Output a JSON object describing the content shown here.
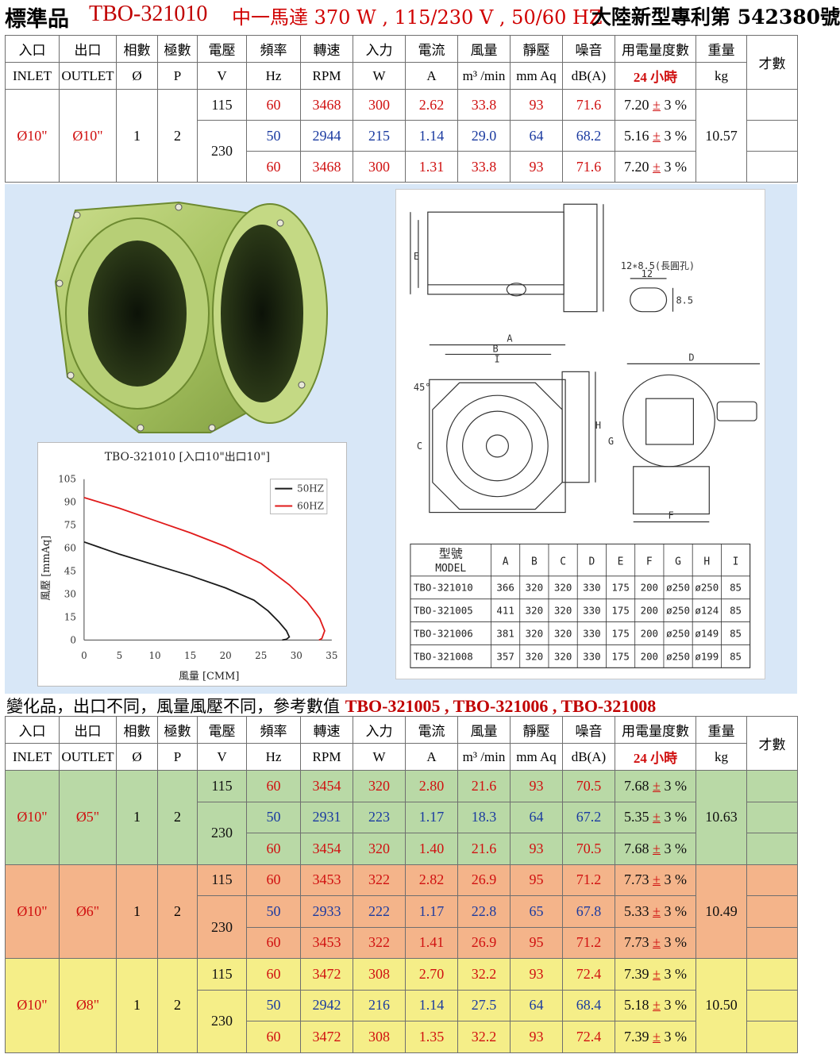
{
  "header": {
    "standard": "標準品",
    "model": "TBO-321010",
    "motor": "中一馬達 370 W , 115/230 V , 50/60 HZ",
    "patent": "大陸新型專利第 542380號"
  },
  "columns": [
    {
      "zh": "入口",
      "en": "INLET"
    },
    {
      "zh": "出口",
      "en": "OUTLET"
    },
    {
      "zh": "相數",
      "en": "Ø"
    },
    {
      "zh": "極數",
      "en": "P"
    },
    {
      "zh": "電壓",
      "en": "V"
    },
    {
      "zh": "頻率",
      "en": "Hz"
    },
    {
      "zh": "轉速",
      "en": "RPM"
    },
    {
      "zh": "入力",
      "en": "W"
    },
    {
      "zh": "電流",
      "en": "A"
    },
    {
      "zh": "風量",
      "en": "m³ /min"
    },
    {
      "zh": "靜壓",
      "en": "mm Aq"
    },
    {
      "zh": "噪音",
      "en": "dB(A)"
    },
    {
      "zh": "用電量度數",
      "en": "24 小時"
    },
    {
      "zh": "重量",
      "en": "kg"
    },
    {
      "zh": "才數",
      "en": ""
    }
  ],
  "standard_table": {
    "inlet": "Ø10\"",
    "outlet": "Ø10\"",
    "phase": "1",
    "poles": "2",
    "weight": "10.57",
    "rows": [
      {
        "v": "115",
        "hz": "60",
        "rpm": "3468",
        "w": "300",
        "a": "2.62",
        "flow": "33.8",
        "sp": "93",
        "db": "71.6",
        "kwh": "7.20",
        "tol": "±",
        "pct": "3 %"
      },
      {
        "v": "230",
        "hz": "50",
        "rpm": "2944",
        "w": "215",
        "a": "1.14",
        "flow": "29.0",
        "sp": "64",
        "db": "68.2",
        "kwh": "5.16",
        "tol": "±",
        "pct": "3 %"
      },
      {
        "v": "",
        "hz": "60",
        "rpm": "3468",
        "w": "300",
        "a": "1.31",
        "flow": "33.8",
        "sp": "93",
        "db": "71.6",
        "kwh": "7.20",
        "tol": "±",
        "pct": "3 %"
      }
    ]
  },
  "chart_data": {
    "type": "line",
    "title": "TBO-321010 [入口10\"出口10\"]",
    "xlabel": "風量 [CMM]",
    "ylabel": "風壓 [mmAq]",
    "xlim": [
      0,
      35
    ],
    "ylim": [
      0,
      105
    ],
    "xticks": [
      "0",
      "5",
      "10",
      "15",
      "20",
      "25",
      "30",
      "35"
    ],
    "yticks": [
      "0",
      "15",
      "30",
      "45",
      "60",
      "75",
      "90",
      "105"
    ],
    "legend_position": "top-right",
    "series": [
      {
        "name": "50HZ",
        "color": "#1a1a1a",
        "x": [
          0,
          5,
          10,
          15,
          20,
          24,
          26,
          27.5,
          28.6,
          29,
          28.6,
          28
        ],
        "y": [
          64,
          56,
          49,
          42,
          34,
          26,
          19,
          12,
          6,
          2,
          0.5,
          0
        ]
      },
      {
        "name": "60HZ",
        "color": "#e01a1a",
        "x": [
          0,
          5,
          10,
          15,
          20,
          25,
          29,
          31.5,
          33.3,
          34,
          33.6,
          33.2
        ],
        "y": [
          93,
          86,
          78,
          70,
          61,
          50,
          36,
          25,
          14,
          6,
          1,
          0
        ]
      }
    ]
  },
  "drawing": {
    "hole_label": "12∗8.5(長圓孔)",
    "hole_w": "12",
    "hole_h": "8.5",
    "angle": "45°",
    "dims": [
      "A",
      "B",
      "C",
      "D",
      "E",
      "F",
      "G",
      "H",
      "I"
    ],
    "model_header_zh": "型號",
    "model_header_en": "MODEL",
    "rows": [
      {
        "model": "TBO-321010",
        "vals": [
          "366",
          "320",
          "320",
          "330",
          "175",
          "200",
          "ø250",
          "ø250",
          "85"
        ]
      },
      {
        "model": "TBO-321005",
        "vals": [
          "411",
          "320",
          "320",
          "330",
          "175",
          "200",
          "ø250",
          "ø124",
          "85"
        ]
      },
      {
        "model": "TBO-321006",
        "vals": [
          "381",
          "320",
          "320",
          "330",
          "175",
          "200",
          "ø250",
          "ø149",
          "85"
        ]
      },
      {
        "model": "TBO-321008",
        "vals": [
          "357",
          "320",
          "320",
          "330",
          "175",
          "200",
          "ø250",
          "ø199",
          "85"
        ]
      }
    ]
  },
  "variant_title": {
    "text": "變化品，出口不同，風量風壓不同，參考數值",
    "models": "TBO-321005 , TBO-321006 , TBO-321008"
  },
  "variants": [
    {
      "inlet": "Ø10\"",
      "outlet": "Ø5\"",
      "phase": "1",
      "poles": "2",
      "weight": "10.63",
      "rows": [
        {
          "v": "115",
          "hz": "60",
          "rpm": "3454",
          "w": "320",
          "a": "2.80",
          "flow": "21.6",
          "sp": "93",
          "db": "70.5",
          "kwh": "7.68",
          "tol": "±",
          "pct": "3 %"
        },
        {
          "v": "230",
          "hz": "50",
          "rpm": "2931",
          "w": "223",
          "a": "1.17",
          "flow": "18.3",
          "sp": "64",
          "db": "67.2",
          "kwh": "5.35",
          "tol": "±",
          "pct": "3 %"
        },
        {
          "v": "",
          "hz": "60",
          "rpm": "3454",
          "w": "320",
          "a": "1.40",
          "flow": "21.6",
          "sp": "93",
          "db": "70.5",
          "kwh": "7.68",
          "tol": "±",
          "pct": "3 %"
        }
      ]
    },
    {
      "inlet": "Ø10\"",
      "outlet": "Ø6\"",
      "phase": "1",
      "poles": "2",
      "weight": "10.49",
      "rows": [
        {
          "v": "115",
          "hz": "60",
          "rpm": "3453",
          "w": "322",
          "a": "2.82",
          "flow": "26.9",
          "sp": "95",
          "db": "71.2",
          "kwh": "7.73",
          "tol": "±",
          "pct": "3 %"
        },
        {
          "v": "230",
          "hz": "50",
          "rpm": "2933",
          "w": "222",
          "a": "1.17",
          "flow": "22.8",
          "sp": "65",
          "db": "67.8",
          "kwh": "5.33",
          "tol": "±",
          "pct": "3 %"
        },
        {
          "v": "",
          "hz": "60",
          "rpm": "3453",
          "w": "322",
          "a": "1.41",
          "flow": "26.9",
          "sp": "95",
          "db": "71.2",
          "kwh": "7.73",
          "tol": "±",
          "pct": "3 %"
        }
      ]
    },
    {
      "inlet": "Ø10\"",
      "outlet": "Ø8\"",
      "phase": "1",
      "poles": "2",
      "weight": "10.50",
      "rows": [
        {
          "v": "115",
          "hz": "60",
          "rpm": "3472",
          "w": "308",
          "a": "2.70",
          "flow": "32.2",
          "sp": "93",
          "db": "72.4",
          "kwh": "7.39",
          "tol": "±",
          "pct": "3 %"
        },
        {
          "v": "230",
          "hz": "50",
          "rpm": "2942",
          "w": "216",
          "a": "1.14",
          "flow": "27.5",
          "sp": "64",
          "db": "68.4",
          "kwh": "5.18",
          "tol": "±",
          "pct": "3 %"
        },
        {
          "v": "",
          "hz": "60",
          "rpm": "3472",
          "w": "308",
          "a": "1.35",
          "flow": "32.2",
          "sp": "93",
          "db": "72.4",
          "kwh": "7.39",
          "tol": "±",
          "pct": "3 %"
        }
      ]
    }
  ],
  "colors": {
    "red": "#d01010",
    "blue": "#1a3aa0",
    "green_bg": "#b9d9a6",
    "orange_bg": "#f4b48a",
    "yellow_bg": "#f5ee88",
    "middle_bg": "#d8e7f7",
    "fan_green": "#a9c46a"
  }
}
